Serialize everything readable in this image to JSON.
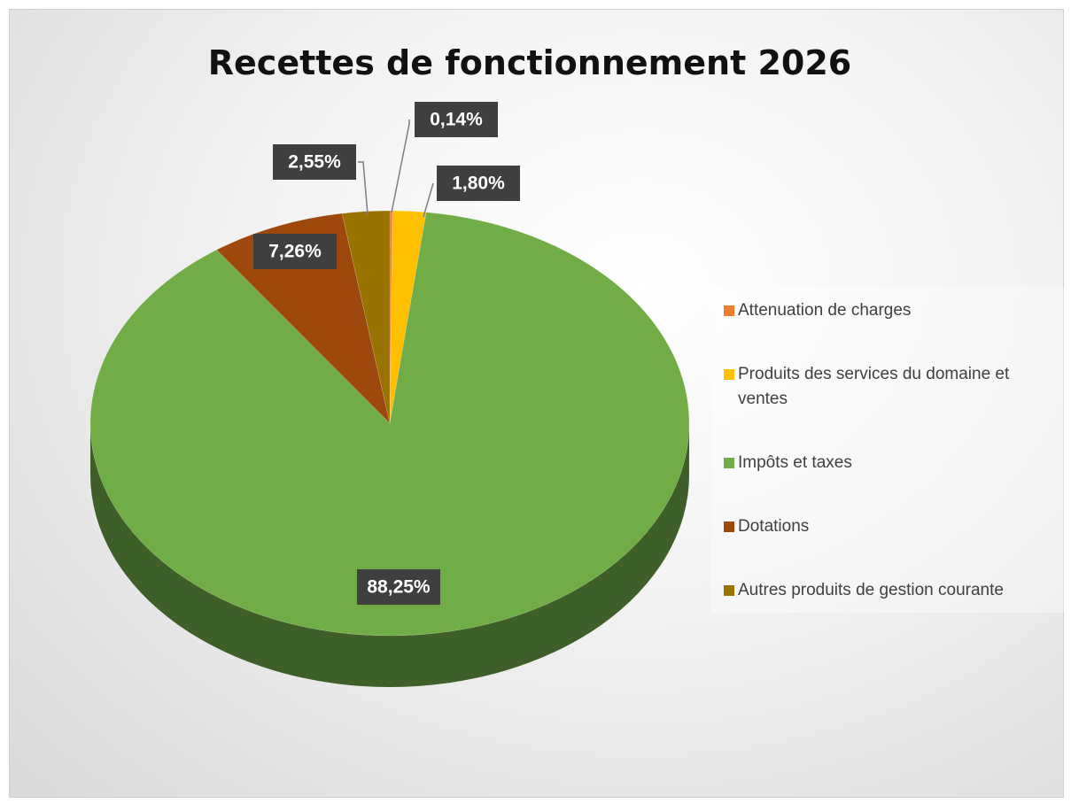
{
  "chart_data": {
    "type": "pie",
    "title": "Recettes de fonctionnement 2026",
    "categories": [
      "Attenuation de charges",
      "Produits des services du domaine et ventes",
      "Impôts et taxes",
      "Dotations",
      "Autres produits de gestion courante"
    ],
    "values": [
      0.14,
      1.8,
      88.25,
      7.26,
      2.55
    ],
    "value_labels": [
      "0,14%",
      "1,80%",
      "88,25%",
      "7,26%",
      "2,55%"
    ],
    "colors": [
      "#ED7D31",
      "#FFC000",
      "#70AD47",
      "#9E480E",
      "#997300"
    ],
    "legend": "right"
  }
}
